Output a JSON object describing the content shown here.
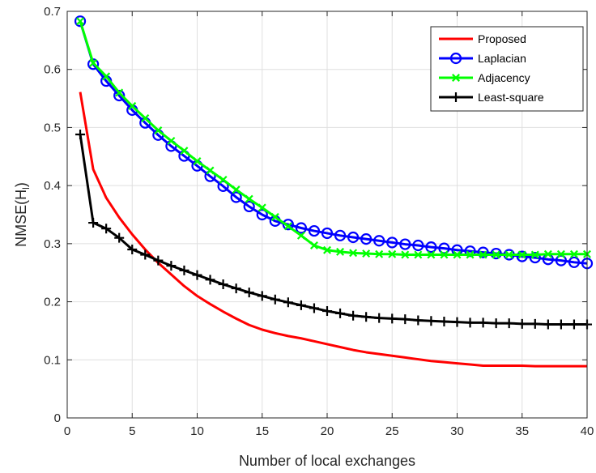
{
  "chart_data": {
    "type": "line",
    "xlabel": "Number of local exchanges",
    "ylabel": "NMSE(H",
    "ylabel_subscript": "l",
    "ylabel_suffix": ")",
    "xlim": [
      0,
      40
    ],
    "ylim": [
      0,
      0.7
    ],
    "xticks": [
      0,
      5,
      10,
      15,
      20,
      25,
      30,
      35,
      40
    ],
    "yticks": [
      0,
      0.1,
      0.2,
      0.3,
      0.4,
      0.5,
      0.6,
      0.7
    ],
    "grid": true,
    "legend_position": "top-right",
    "x": [
      1,
      2,
      3,
      4,
      5,
      6,
      7,
      8,
      9,
      10,
      11,
      12,
      13,
      14,
      15,
      16,
      17,
      18,
      19,
      20,
      21,
      22,
      23,
      24,
      25,
      26,
      27,
      28,
      29,
      30,
      31,
      32,
      33,
      34,
      35,
      36,
      37,
      38,
      39,
      40
    ],
    "series": [
      {
        "name": "Proposed",
        "color": "#ff0000",
        "marker": "none",
        "values": [
          0.561,
          0.428,
          0.379,
          0.345,
          0.316,
          0.29,
          0.267,
          0.247,
          0.227,
          0.21,
          0.196,
          0.183,
          0.171,
          0.16,
          0.152,
          0.146,
          0.141,
          0.137,
          0.132,
          0.127,
          0.122,
          0.117,
          0.113,
          0.11,
          0.107,
          0.104,
          0.101,
          0.098,
          0.096,
          0.094,
          0.092,
          0.09,
          0.09,
          0.09,
          0.09,
          0.089,
          0.089,
          0.089,
          0.089,
          0.089
        ]
      },
      {
        "name": "Laplacian",
        "color": "#0000ff",
        "marker": "circle",
        "values": [
          0.683,
          0.609,
          0.58,
          0.555,
          0.53,
          0.508,
          0.487,
          0.468,
          0.451,
          0.434,
          0.416,
          0.399,
          0.38,
          0.364,
          0.35,
          0.339,
          0.333,
          0.327,
          0.322,
          0.318,
          0.314,
          0.311,
          0.308,
          0.305,
          0.302,
          0.299,
          0.297,
          0.294,
          0.292,
          0.289,
          0.287,
          0.285,
          0.283,
          0.281,
          0.278,
          0.276,
          0.273,
          0.271,
          0.268,
          0.266
        ]
      },
      {
        "name": "Adjacency",
        "color": "#00ff00",
        "marker": "x",
        "values": [
          0.683,
          0.611,
          0.588,
          0.56,
          0.537,
          0.516,
          0.495,
          0.477,
          0.46,
          0.442,
          0.426,
          0.41,
          0.393,
          0.377,
          0.362,
          0.346,
          0.33,
          0.314,
          0.297,
          0.289,
          0.286,
          0.284,
          0.283,
          0.282,
          0.282,
          0.281,
          0.281,
          0.281,
          0.281,
          0.281,
          0.281,
          0.281,
          0.281,
          0.281,
          0.281,
          0.281,
          0.282,
          0.282,
          0.282,
          0.282
        ]
      },
      {
        "name": "Least-square",
        "color": "#000000",
        "marker": "plus",
        "values": [
          0.488,
          0.336,
          0.326,
          0.31,
          0.29,
          0.281,
          0.271,
          0.262,
          0.254,
          0.246,
          0.238,
          0.23,
          0.223,
          0.216,
          0.21,
          0.204,
          0.199,
          0.194,
          0.189,
          0.184,
          0.18,
          0.176,
          0.174,
          0.172,
          0.171,
          0.17,
          0.168,
          0.167,
          0.166,
          0.165,
          0.164,
          0.164,
          0.163,
          0.163,
          0.162,
          0.162,
          0.161,
          0.161,
          0.161,
          0.161
        ]
      }
    ]
  }
}
